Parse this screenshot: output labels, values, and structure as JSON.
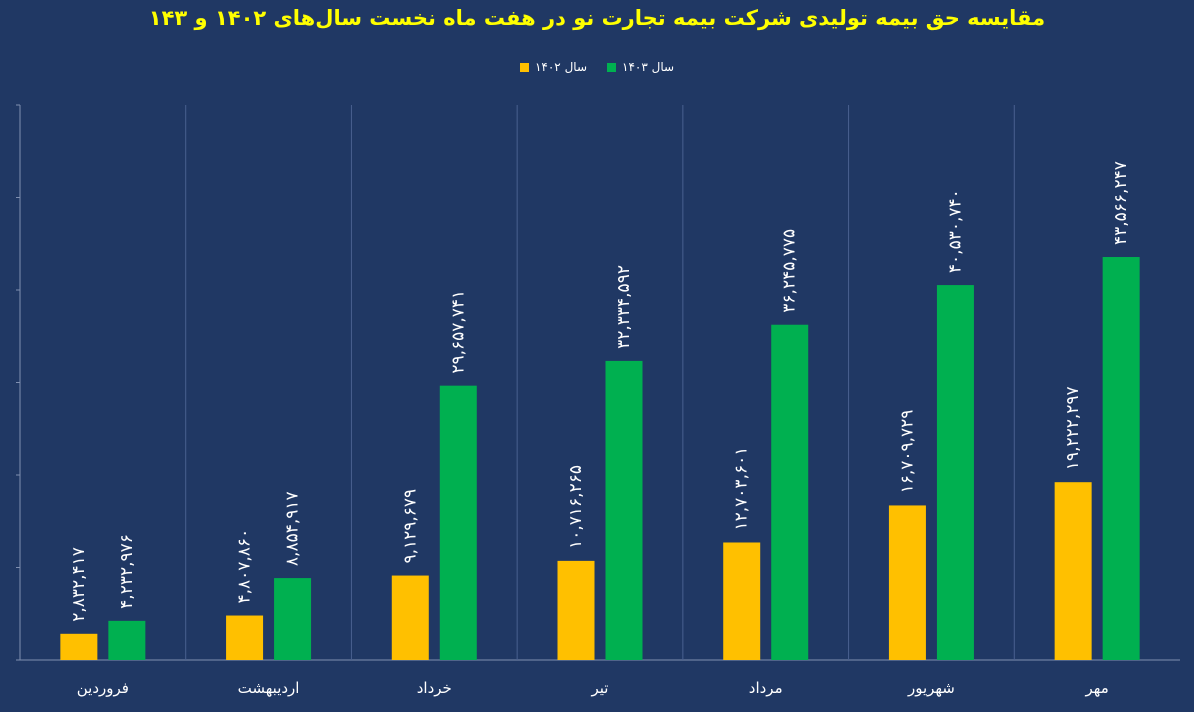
{
  "chart_data": {
    "type": "bar",
    "title": "مقایسه حق بیمه تولیدی شرکت بیمه تجارت نو در هفت ماه نخست سال‌های ۱۴۰۲ و ۱۴۳",
    "categories": [
      "فروردین",
      "اردیبهشت",
      "خرداد",
      "تیر",
      "مرداد",
      "شهریور",
      "مهر"
    ],
    "series": [
      {
        "name": "سال ۱۴۰۲",
        "color": "#ffc000",
        "values": [
          2832417,
          4807860,
          9129679,
          10716265,
          12703601,
          16709729,
          19222297
        ],
        "labels": [
          "۲,۸۳۲,۴۱۷",
          "۴,۸۰۷,۸۶۰",
          "۹,۱۲۹,۶۷۹",
          "۱۰,۷۱۶,۲۶۵",
          "۱۲,۷۰۳,۶۰۱",
          "۱۶,۷۰۹,۷۲۹",
          "۱۹,۲۲۲,۲۹۷"
        ]
      },
      {
        "name": "سال ۱۴۰۳",
        "color": "#00b050",
        "values": [
          4232976,
          8854917,
          29657741,
          32334592,
          36245775,
          40530740,
          43566247
        ],
        "labels": [
          "۴,۲۳۲,۹۷۶",
          "۸,۸۵۴,۹۱۷",
          "۲۹,۶۵۷,۷۴۱",
          "۳۲,۳۳۴,۵۹۲",
          "۳۶,۲۴۵,۷۷۵",
          "۴۰,۵۳۰,۷۴۰",
          "۴۳,۵۶۶,۲۴۷"
        ]
      }
    ],
    "ylim": [
      0,
      60000000
    ],
    "y_tick_labels_shown": false,
    "grid": "vertical category separators",
    "legend": "top-center",
    "xlabel": "",
    "ylabel": ""
  },
  "colors": {
    "background": "#203864",
    "title": "#ffff00",
    "text": "#ffffff"
  }
}
